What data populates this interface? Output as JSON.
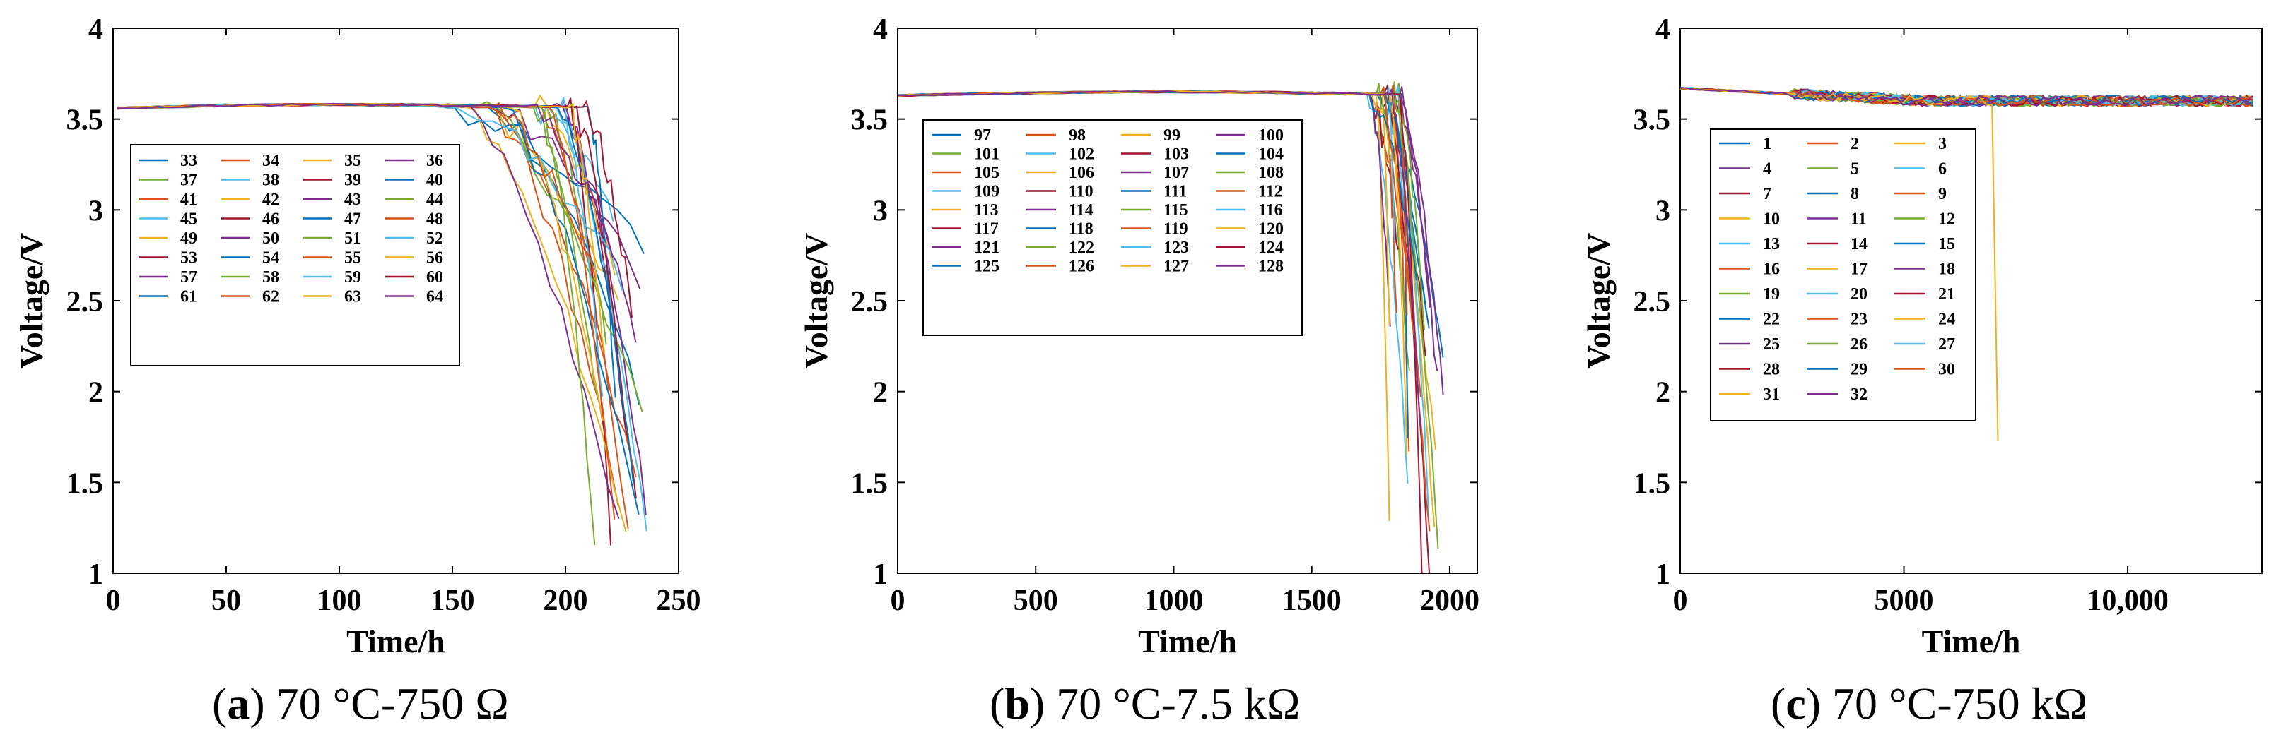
{
  "figure": {
    "captions": [
      {
        "paren_open": "(",
        "letter": "a",
        "rest": ") 70 °C-750 Ω"
      },
      {
        "paren_open": "(",
        "letter": "b",
        "rest": ") 70 °C-7.5 kΩ"
      },
      {
        "paren_open": "(",
        "letter": "c",
        "rest": ") 70 °C-750 kΩ"
      }
    ]
  },
  "palette": [
    "#0072BD",
    "#D95319",
    "#EDB120",
    "#7E2F8E",
    "#77AC30",
    "#4DBEEE",
    "#A2142F"
  ],
  "chart_data": [
    {
      "type": "line",
      "title": "",
      "xlabel": "Time/h",
      "ylabel": "Voltage/V",
      "xlim": [
        0,
        250
      ],
      "ylim": [
        1,
        4
      ],
      "xticks": [
        0,
        50,
        100,
        150,
        200,
        250
      ],
      "xtick_labels": [
        "0",
        "50",
        "100",
        "150",
        "200",
        "250"
      ],
      "yticks": [
        1,
        1.5,
        2,
        2.5,
        3,
        3.5,
        4
      ],
      "ytick_labels": [
        "1",
        "1.5",
        "2",
        "2.5",
        "3",
        "3.5",
        "4"
      ],
      "legend": [
        "33",
        "34",
        "35",
        "36",
        "37",
        "38",
        "39",
        "40",
        "41",
        "42",
        "43",
        "44",
        "45",
        "46",
        "47",
        "48",
        "49",
        "50",
        "51",
        "52",
        "53",
        "54",
        "55",
        "56",
        "57",
        "58",
        "59",
        "60",
        "61",
        "62",
        "63",
        "64"
      ],
      "legend_columns": 4,
      "legend_position": "upper-left",
      "series_profile": {
        "start_voltage": 3.56,
        "plateau_voltage": 3.58,
        "knee_time_range": [
          150,
          215
        ],
        "end_time_range": [
          212,
          237
        ],
        "end_voltage_range": [
          1.1,
          3.0
        ]
      }
    },
    {
      "type": "line",
      "title": "",
      "xlabel": "Time/h",
      "ylabel": "Voltage/V",
      "xlim": [
        0,
        2100
      ],
      "ylim": [
        1,
        4
      ],
      "xticks": [
        0,
        500,
        1000,
        1500,
        2000
      ],
      "xtick_labels": [
        "0",
        "500",
        "1000",
        "1500",
        "2000"
      ],
      "yticks": [
        1,
        1.5,
        2,
        2.5,
        3,
        3.5,
        4
      ],
      "ytick_labels": [
        "1",
        "1.5",
        "2",
        "2.5",
        "3",
        "3.5",
        "4"
      ],
      "legend": [
        "97",
        "98",
        "99",
        "100",
        "101",
        "102",
        "103",
        "104",
        "105",
        "106",
        "107",
        "108",
        "109",
        "110",
        "111",
        "112",
        "113",
        "114",
        "115",
        "116",
        "117",
        "118",
        "119",
        "120",
        "121",
        "122",
        "123",
        "124",
        "125",
        "126",
        "127",
        "128"
      ],
      "legend_columns": 4,
      "legend_position": "upper-left",
      "series_profile": {
        "start_voltage": 3.63,
        "plateau_voltage": 3.65,
        "knee_time_range": [
          1700,
          1830
        ],
        "end_time_range": [
          1760,
          1980
        ],
        "end_voltage_range": [
          1.0,
          3.0
        ]
      }
    },
    {
      "type": "line",
      "title": "",
      "xlabel": "Time/h",
      "ylabel": "Voltage/V",
      "xlim": [
        0,
        13000
      ],
      "ylim": [
        1,
        4
      ],
      "xticks": [
        0,
        5000,
        10000
      ],
      "xtick_labels": [
        "0",
        "5000",
        "10,000"
      ],
      "yticks": [
        1,
        1.5,
        2,
        2.5,
        3,
        3.5,
        4
      ],
      "ytick_labels": [
        "1",
        "1.5",
        "2",
        "2.5",
        "3",
        "3.5",
        "4"
      ],
      "legend": [
        "1",
        "2",
        "3",
        "4",
        "5",
        "6",
        "7",
        "8",
        "9",
        "10",
        "11",
        "12",
        "13",
        "14",
        "15",
        "16",
        "17",
        "18",
        "19",
        "20",
        "21",
        "22",
        "23",
        "24",
        "25",
        "26",
        "27",
        "28",
        "29",
        "30",
        "31",
        "32"
      ],
      "legend_columns": 3,
      "legend_position": "upper-left",
      "series_profile": {
        "start_voltage": 3.67,
        "plateau_voltage": 3.6,
        "end_time": 12800,
        "end_voltage_range": [
          3.54,
          3.63
        ],
        "dropout": {
          "series": "31",
          "time": 7100,
          "voltage": 1.73
        }
      }
    }
  ]
}
